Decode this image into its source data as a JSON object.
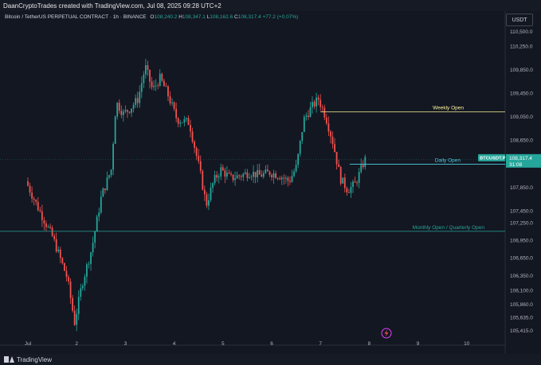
{
  "header": {
    "credit": "DaanCryptoTrades created with TradingView.com, Jul 08, 2025 09:28 UTC+2"
  },
  "legend": {
    "symbol": "Bitcoin / TetherUS PERPETUAL CONTRACT · 1h · BINANCE",
    "o_label": "O",
    "o": "108,240.2",
    "h_label": "H",
    "h": "108,347.1",
    "l_label": "L",
    "l": "108,162.6",
    "c_label": "C",
    "c": "108,317.4",
    "change": "+77.2 (+0.07%)"
  },
  "currency": "USDT",
  "footer": {
    "brand": "TradingView",
    "flash_icon": "lightning-icon"
  },
  "colors": {
    "bull": "#26a69a",
    "bear": "#ef5350",
    "weekly": "#fff59d",
    "daily": "#4dd0e1",
    "monthly": "#26a69a"
  },
  "chart_data": {
    "type": "candlestick",
    "timeframe": "1h",
    "y_ticks": [
      "110,500.0",
      "110,250.0",
      "109,850.0",
      "109,450.0",
      "109,050.0",
      "108,650.0",
      "108,250.0",
      "107,850.0",
      "107,450.0",
      "107,250.0",
      "106,950.0",
      "106,650.0",
      "106,350.0",
      "106,100.0",
      "105,860.0",
      "105,635.0",
      "105,415.0"
    ],
    "x_ticks": [
      "Jul",
      "2",
      "3",
      "4",
      "5",
      "6",
      "7",
      "8",
      "9",
      "10"
    ],
    "current_price": {
      "label": "BTCUSDT.P",
      "value": "108,317.4",
      "countdown": "31:08"
    },
    "levels": [
      {
        "name": "Weekly Open",
        "value": 109130
      },
      {
        "name": "Daily Open",
        "value": 108240
      },
      {
        "name": "Monthly Open / Quarterly Open",
        "value": 107100
      }
    ],
    "anchors": [
      {
        "x": 0,
        "y": 107950
      },
      {
        "x": 0.25,
        "y": 107500
      },
      {
        "x": 0.55,
        "y": 107000
      },
      {
        "x": 0.85,
        "y": 106300
      },
      {
        "x": 1.0,
        "y": 105550
      },
      {
        "x": 1.15,
        "y": 106200
      },
      {
        "x": 1.35,
        "y": 106800
      },
      {
        "x": 1.55,
        "y": 107700
      },
      {
        "x": 1.75,
        "y": 108150
      },
      {
        "x": 1.85,
        "y": 109300
      },
      {
        "x": 2.0,
        "y": 109100
      },
      {
        "x": 2.15,
        "y": 109200
      },
      {
        "x": 2.3,
        "y": 109350
      },
      {
        "x": 2.45,
        "y": 109900
      },
      {
        "x": 2.6,
        "y": 109500
      },
      {
        "x": 2.75,
        "y": 109700
      },
      {
        "x": 2.9,
        "y": 109450
      },
      {
        "x": 3.1,
        "y": 109000
      },
      {
        "x": 3.35,
        "y": 108950
      },
      {
        "x": 3.55,
        "y": 108200
      },
      {
        "x": 3.7,
        "y": 107550
      },
      {
        "x": 3.85,
        "y": 107950
      },
      {
        "x": 4.0,
        "y": 108150
      },
      {
        "x": 4.2,
        "y": 108000
      },
      {
        "x": 4.4,
        "y": 108050
      },
      {
        "x": 4.6,
        "y": 108100
      },
      {
        "x": 4.8,
        "y": 108050
      },
      {
        "x": 5.0,
        "y": 108100
      },
      {
        "x": 5.2,
        "y": 108050
      },
      {
        "x": 5.4,
        "y": 107950
      },
      {
        "x": 5.55,
        "y": 108200
      },
      {
        "x": 5.7,
        "y": 109000
      },
      {
        "x": 5.85,
        "y": 109200
      },
      {
        "x": 6.0,
        "y": 109350
      },
      {
        "x": 6.15,
        "y": 109050
      },
      {
        "x": 6.3,
        "y": 108600
      },
      {
        "x": 6.45,
        "y": 108000
      },
      {
        "x": 6.6,
        "y": 107800
      },
      {
        "x": 6.75,
        "y": 107900
      },
      {
        "x": 6.85,
        "y": 108100
      },
      {
        "x": 6.95,
        "y": 108317.4
      }
    ]
  }
}
